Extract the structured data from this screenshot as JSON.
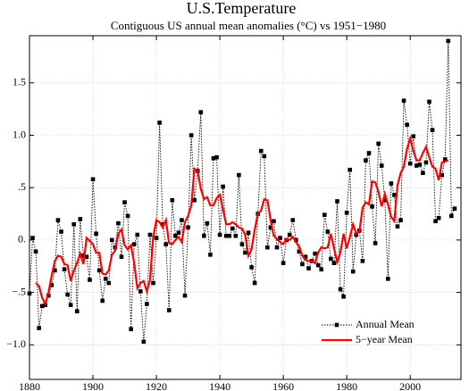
{
  "chart_data": {
    "type": "line",
    "title": "U.S.Temperature",
    "subtitle": "Contiguous US annual mean anomalies (°C) vs 1951−1980",
    "xlim": [
      1880,
      2016
    ],
    "xticks": [
      1880,
      1900,
      1920,
      1940,
      1960,
      1980,
      2000
    ],
    "ylim": [
      -1.33,
      1.95
    ],
    "yticks": [
      {
        "value": -1.0,
        "label": "−1.0"
      },
      {
        "value": -0.5,
        "label": "−.5"
      },
      {
        "value": 0,
        "label": "0."
      },
      {
        "value": 0.5,
        "label": ".5"
      },
      {
        "value": 1.0,
        "label": "1.0"
      },
      1.5
    ],
    "grid": true,
    "legend": "lower right",
    "series": [
      {
        "name": "Annual Mean",
        "color": "#000000",
        "style": "dotted",
        "marker": "square",
        "x": [
          1880,
          1881,
          1882,
          1883,
          1884,
          1885,
          1886,
          1887,
          1888,
          1889,
          1890,
          1891,
          1892,
          1893,
          1894,
          1895,
          1896,
          1897,
          1898,
          1899,
          1900,
          1901,
          1902,
          1903,
          1904,
          1905,
          1906,
          1907,
          1908,
          1909,
          1910,
          1911,
          1912,
          1913,
          1914,
          1915,
          1916,
          1917,
          1918,
          1919,
          1920,
          1921,
          1922,
          1923,
          1924,
          1925,
          1926,
          1927,
          1928,
          1929,
          1930,
          1931,
          1932,
          1933,
          1934,
          1935,
          1936,
          1937,
          1938,
          1939,
          1940,
          1941,
          1942,
          1943,
          1944,
          1945,
          1946,
          1947,
          1948,
          1949,
          1950,
          1951,
          1952,
          1953,
          1954,
          1955,
          1956,
          1957,
          1958,
          1959,
          1960,
          1961,
          1962,
          1963,
          1964,
          1965,
          1966,
          1967,
          1968,
          1969,
          1970,
          1971,
          1972,
          1973,
          1974,
          1975,
          1976,
          1977,
          1978,
          1979,
          1980,
          1981,
          1982,
          1983,
          1984,
          1985,
          1986,
          1987,
          1988,
          1989,
          1990,
          1991,
          1992,
          1993,
          1994,
          1995,
          1996,
          1997,
          1998,
          1999,
          2000,
          2001,
          2002,
          2003,
          2004,
          2005,
          2006,
          2007,
          2008,
          2009,
          2010,
          2011,
          2012,
          2013,
          2014
        ],
        "values": [
          -0.51,
          0.02,
          -0.11,
          -0.84,
          -0.63,
          -0.62,
          -0.53,
          -0.43,
          -0.29,
          0.19,
          0.08,
          -0.28,
          -0.52,
          -0.62,
          0.15,
          -0.68,
          0.2,
          -0.15,
          -0.16,
          -0.38,
          0.58,
          0.06,
          -0.29,
          -0.58,
          -0.37,
          -0.41,
          0.0,
          -0.07,
          0.16,
          -0.16,
          0.36,
          0.23,
          -0.85,
          -0.04,
          0.05,
          -0.49,
          -0.97,
          -0.61,
          0.05,
          -0.41,
          0.02,
          1.12,
          0.15,
          -0.04,
          -0.67,
          0.38,
          0.04,
          0.07,
          0.19,
          -0.53,
          0.12,
          1.0,
          0.38,
          0.66,
          1.22,
          0.04,
          0.16,
          -0.14,
          0.78,
          0.79,
          0.05,
          0.51,
          0.04,
          0.04,
          0.11,
          0.04,
          0.62,
          -0.04,
          -0.12,
          0.07,
          -0.26,
          -0.41,
          0.25,
          0.85,
          0.8,
          -0.07,
          0.12,
          0.18,
          -0.07,
          0.02,
          -0.22,
          0.0,
          0.05,
          0.19,
          0.0,
          -0.11,
          -0.23,
          -0.16,
          -0.27,
          -0.2,
          -0.13,
          -0.24,
          -0.28,
          0.24,
          0.08,
          -0.18,
          -0.22,
          0.37,
          -0.47,
          -0.54,
          0.26,
          0.67,
          -0.3,
          0.05,
          0.09,
          -0.2,
          0.76,
          0.83,
          0.32,
          -0.03,
          0.92,
          0.71,
          0.38,
          -0.37,
          0.54,
          0.43,
          0.13,
          0.19,
          1.33,
          1.1,
          0.73,
          0.99,
          0.71,
          0.72,
          0.64,
          0.74,
          1.32,
          1.05,
          0.18,
          0.21,
          0.62,
          0.77,
          1.9,
          0.23,
          0.3
        ]
      },
      {
        "name": "5−year Mean",
        "color": "#ff0000",
        "style": "solid",
        "x": [
          1882,
          1883,
          1884,
          1885,
          1886,
          1887,
          1888,
          1889,
          1890,
          1891,
          1892,
          1893,
          1894,
          1895,
          1896,
          1897,
          1898,
          1899,
          1900,
          1901,
          1902,
          1903,
          1904,
          1905,
          1906,
          1907,
          1908,
          1909,
          1910,
          1911,
          1912,
          1913,
          1914,
          1915,
          1916,
          1917,
          1918,
          1919,
          1920,
          1921,
          1922,
          1923,
          1924,
          1925,
          1926,
          1927,
          1928,
          1929,
          1930,
          1931,
          1932,
          1933,
          1934,
          1935,
          1936,
          1937,
          1938,
          1939,
          1940,
          1941,
          1942,
          1943,
          1944,
          1945,
          1946,
          1947,
          1948,
          1949,
          1950,
          1951,
          1952,
          1953,
          1954,
          1955,
          1956,
          1957,
          1958,
          1959,
          1960,
          1961,
          1962,
          1963,
          1964,
          1965,
          1966,
          1967,
          1968,
          1969,
          1970,
          1971,
          1972,
          1973,
          1974,
          1975,
          1976,
          1977,
          1978,
          1979,
          1980,
          1981,
          1982,
          1983,
          1984,
          1985,
          1986,
          1987,
          1988,
          1989,
          1990,
          1991,
          1992,
          1993,
          1994,
          1995,
          1996,
          1997,
          1998,
          1999,
          2000,
          2001,
          2002,
          2003,
          2004,
          2005,
          2006,
          2007,
          2008,
          2009,
          2010,
          2011,
          2012
        ],
        "values": [
          -0.41,
          -0.44,
          -0.55,
          -0.61,
          -0.5,
          -0.34,
          -0.2,
          -0.15,
          -0.16,
          -0.23,
          -0.24,
          -0.39,
          -0.29,
          -0.22,
          -0.13,
          -0.23,
          0.02,
          -0.01,
          -0.04,
          -0.12,
          -0.12,
          -0.32,
          -0.33,
          -0.29,
          -0.14,
          -0.1,
          0.06,
          0.1,
          -0.05,
          -0.09,
          -0.05,
          -0.22,
          -0.46,
          -0.41,
          -0.39,
          -0.49,
          -0.38,
          0.03,
          0.19,
          0.17,
          0.12,
          0.19,
          -0.03,
          -0.04,
          0.0,
          0.03,
          -0.02,
          0.17,
          0.23,
          0.33,
          0.68,
          0.66,
          0.49,
          0.39,
          0.41,
          0.33,
          0.33,
          0.4,
          0.43,
          0.29,
          0.15,
          0.15,
          0.17,
          0.15,
          0.12,
          0.11,
          0.05,
          -0.15,
          -0.09,
          0.1,
          0.25,
          0.28,
          0.39,
          0.38,
          0.19,
          0.04,
          0.01,
          -0.02,
          -0.04,
          0.01,
          0.0,
          0.03,
          -0.02,
          -0.06,
          -0.15,
          -0.19,
          -0.2,
          -0.2,
          -0.22,
          -0.12,
          -0.07,
          -0.08,
          -0.07,
          0.06,
          -0.08,
          -0.21,
          -0.12,
          0.06,
          -0.08,
          0.03,
          0.15,
          0.06,
          0.08,
          0.31,
          0.36,
          0.34,
          0.56,
          0.55,
          0.46,
          0.32,
          0.44,
          0.34,
          0.22,
          0.18,
          0.52,
          0.64,
          0.7,
          0.87,
          0.97,
          0.85,
          0.76,
          0.76,
          0.83,
          0.89,
          0.79,
          0.7,
          0.68,
          0.57,
          0.74,
          0.75,
          0.76
        ]
      }
    ]
  }
}
